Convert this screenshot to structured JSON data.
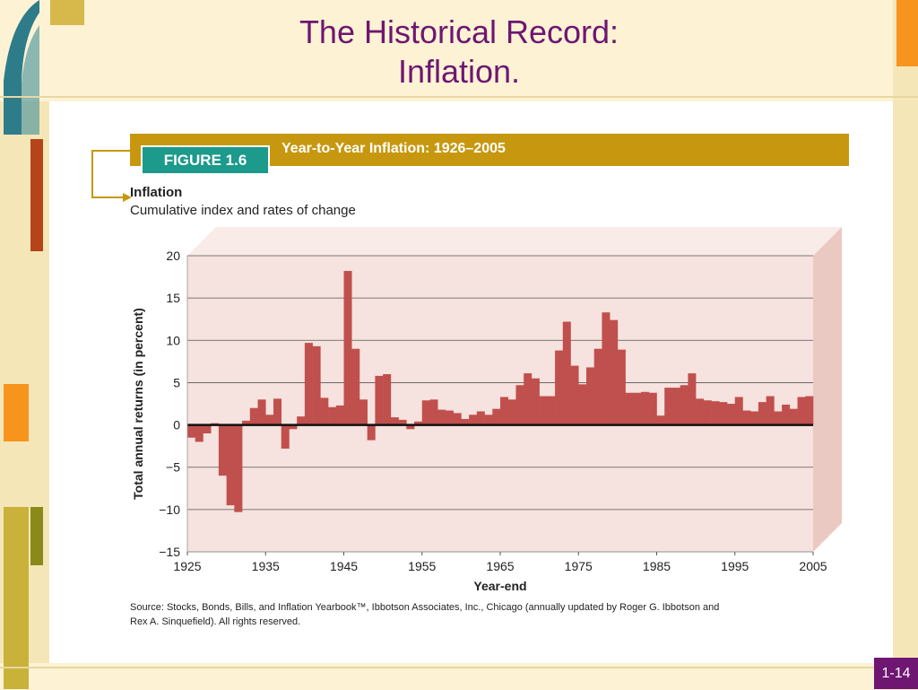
{
  "slide": {
    "title_line1": "The Historical Record:",
    "title_line2": "Inflation.",
    "page_number": "1-14",
    "accent_color": "#6e1672"
  },
  "figure": {
    "label": "FIGURE 1.6",
    "heading": "Year-to-Year Inflation: 1926–2005",
    "subtitle": "Inflation",
    "subtitle2": "Cumulative index and rates of change",
    "source_line1": "Source: Stocks, Bonds, Bills, and Inflation Yearbook™, Ibbotson Associates, Inc., Chicago (annually updated by Roger G. Ibbotson and",
    "source_line2": "Rex A. Sinquefield). All rights reserved."
  },
  "chart_data": {
    "type": "bar",
    "ylabel": "Total annual returns (in percent)",
    "xlabel": "Year-end",
    "ylim": [
      -15,
      20
    ],
    "xlim": [
      1925,
      2005
    ],
    "yticks": [
      20,
      15,
      10,
      5,
      0,
      -5,
      -10,
      -15
    ],
    "xticks": [
      1925,
      1935,
      1945,
      1955,
      1965,
      1975,
      1985,
      1995,
      2005
    ],
    "grid": true,
    "bar_color": "#c0504d",
    "background_color": "#f6e2de",
    "x": [
      1926,
      1927,
      1928,
      1929,
      1930,
      1931,
      1932,
      1933,
      1934,
      1935,
      1936,
      1937,
      1938,
      1939,
      1940,
      1941,
      1942,
      1943,
      1944,
      1945,
      1946,
      1947,
      1948,
      1949,
      1950,
      1951,
      1952,
      1953,
      1954,
      1955,
      1956,
      1957,
      1958,
      1959,
      1960,
      1961,
      1962,
      1963,
      1964,
      1965,
      1966,
      1967,
      1968,
      1969,
      1970,
      1971,
      1972,
      1973,
      1974,
      1975,
      1976,
      1977,
      1978,
      1979,
      1980,
      1981,
      1982,
      1983,
      1984,
      1985,
      1986,
      1987,
      1988,
      1989,
      1990,
      1991,
      1992,
      1993,
      1994,
      1995,
      1996,
      1997,
      1998,
      1999,
      2000,
      2001,
      2002,
      2003,
      2004,
      2005
    ],
    "values": [
      -1.5,
      -2.0,
      -1.0,
      0.2,
      -6.0,
      -9.5,
      -10.3,
      0.5,
      2.0,
      3.0,
      1.2,
      3.1,
      -2.8,
      -0.5,
      1.0,
      9.7,
      9.3,
      3.2,
      2.1,
      2.3,
      18.2,
      9.0,
      3.0,
      -1.8,
      5.8,
      6.0,
      0.9,
      0.6,
      -0.5,
      0.4,
      2.9,
      3.0,
      1.8,
      1.7,
      1.4,
      0.7,
      1.2,
      1.6,
      1.2,
      1.9,
      3.3,
      3.0,
      4.7,
      6.1,
      5.5,
      3.4,
      3.4,
      8.8,
      12.2,
      7.0,
      4.8,
      6.8,
      9.0,
      13.3,
      12.4,
      8.9,
      3.8,
      3.8,
      3.9,
      3.8,
      1.1,
      4.4,
      4.4,
      4.7,
      6.1,
      3.1,
      2.9,
      2.8,
      2.7,
      2.5,
      3.3,
      1.7,
      1.6,
      2.7,
      3.4,
      1.6,
      2.4,
      1.9,
      3.3,
      3.4
    ]
  }
}
